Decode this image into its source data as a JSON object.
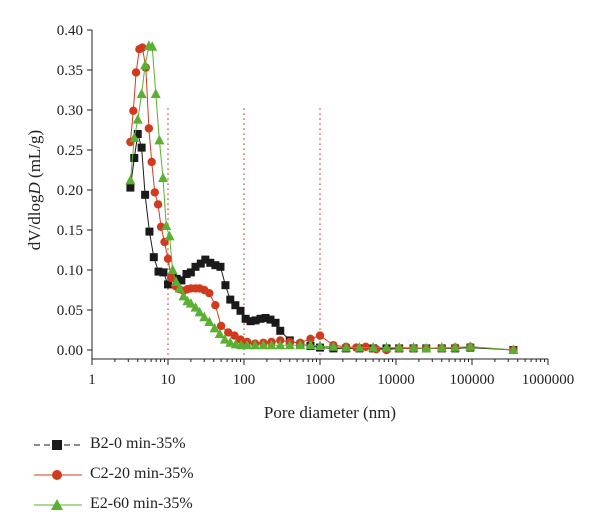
{
  "chart_data": {
    "type": "scatter",
    "xlabel": "Pore diameter (nm)",
    "ylabel_parts": [
      "dV/dlog",
      "D",
      " (mL/g)"
    ],
    "xscale": "log",
    "xlim": [
      1,
      1000000
    ],
    "ylim": [
      0,
      0.4
    ],
    "xticks": [
      "1",
      "10",
      "100",
      "1000",
      "10000",
      "100000",
      "1000000"
    ],
    "yticks": [
      "0.00",
      "0.05",
      "0.10",
      "0.15",
      "0.20",
      "0.25",
      "0.30",
      "0.35",
      "0.40"
    ],
    "reference_lines_x": [
      10,
      100,
      1000
    ],
    "legend_position": "below",
    "grid": false,
    "series": [
      {
        "name": "B2-0 min-35%",
        "color": "#1a1a1a",
        "marker": "square",
        "x": [
          3.2,
          3.6,
          4.0,
          4.5,
          5.0,
          5.7,
          6.5,
          7.5,
          8.7,
          10,
          11.5,
          13,
          15,
          17.5,
          20,
          23,
          27,
          31,
          36,
          42,
          49,
          57,
          66,
          77,
          90,
          105,
          122,
          142,
          165,
          192,
          223,
          260,
          300,
          400,
          550,
          750,
          1000,
          1500,
          2200,
          3300,
          5000,
          7500,
          11000,
          17000,
          25000,
          40000,
          60000,
          95000,
          350000
        ],
        "y": [
          0.203,
          0.24,
          0.27,
          0.253,
          0.194,
          0.148,
          0.116,
          0.098,
          0.097,
          0.082,
          0.091,
          0.089,
          0.087,
          0.095,
          0.097,
          0.104,
          0.108,
          0.113,
          0.109,
          0.106,
          0.104,
          0.081,
          0.063,
          0.056,
          0.049,
          0.039,
          0.036,
          0.037,
          0.039,
          0.04,
          0.038,
          0.034,
          0.024,
          0.012,
          0.007,
          0.005,
          0.003,
          0.002,
          0.002,
          0.002,
          0.002,
          0.002,
          0.002,
          0.002,
          0.002,
          0.002,
          0.002,
          0.003,
          0.0
        ]
      },
      {
        "name": "C2-20 min-35%",
        "color": "#d23a1e",
        "marker": "circle",
        "x": [
          3.2,
          3.5,
          3.8,
          4.2,
          4.6,
          5.1,
          5.6,
          6.1,
          6.7,
          7.4,
          8.1,
          9.0,
          10,
          11,
          12.5,
          14,
          16,
          18,
          20,
          23,
          26,
          30,
          35,
          42,
          50,
          62,
          75,
          90,
          110,
          140,
          180,
          230,
          300,
          400,
          550,
          750,
          1000,
          1500,
          2200,
          3000,
          4000,
          5500,
          7500,
          11000,
          17000,
          25000,
          40000,
          60000,
          95000,
          350000
        ],
        "y": [
          0.26,
          0.299,
          0.347,
          0.376,
          0.378,
          0.353,
          0.277,
          0.235,
          0.197,
          0.182,
          0.154,
          0.135,
          0.114,
          0.09,
          0.08,
          0.076,
          0.074,
          0.076,
          0.077,
          0.077,
          0.077,
          0.075,
          0.071,
          0.056,
          0.03,
          0.022,
          0.018,
          0.013,
          0.01,
          0.008,
          0.009,
          0.01,
          0.012,
          0.01,
          0.009,
          0.014,
          0.018,
          0.006,
          0.004,
          0.003,
          0.004,
          0.001,
          0.0,
          0.002,
          0.002,
          0.002,
          0.002,
          0.003,
          0.004,
          0.0
        ]
      },
      {
        "name": "E2-60 min-35%",
        "color": "#5ab030",
        "marker": "triangle",
        "x": [
          3.2,
          3.6,
          4.0,
          4.5,
          5.0,
          5.6,
          6.2,
          6.9,
          7.7,
          8.6,
          9.5,
          10.5,
          11.5,
          12.8,
          14.2,
          16,
          18,
          20,
          23,
          26,
          30,
          35,
          41,
          48,
          56,
          66,
          78,
          92,
          110,
          140,
          180,
          230,
          300,
          400,
          550,
          750,
          1000,
          1500,
          2200,
          3300,
          5000,
          7500,
          11000,
          17000,
          25000,
          40000,
          60000,
          95000,
          350000
        ],
        "y": [
          0.212,
          0.265,
          0.288,
          0.32,
          0.356,
          0.38,
          0.379,
          0.32,
          0.262,
          0.215,
          0.155,
          0.142,
          0.1,
          0.085,
          0.077,
          0.067,
          0.061,
          0.058,
          0.053,
          0.047,
          0.041,
          0.035,
          0.027,
          0.02,
          0.013,
          0.009,
          0.007,
          0.006,
          0.006,
          0.006,
          0.006,
          0.006,
          0.006,
          0.006,
          0.006,
          0.006,
          0.005,
          0.004,
          0.003,
          0.003,
          0.003,
          0.003,
          0.003,
          0.003,
          0.002,
          0.003,
          0.003,
          0.004,
          0.0
        ]
      }
    ]
  }
}
